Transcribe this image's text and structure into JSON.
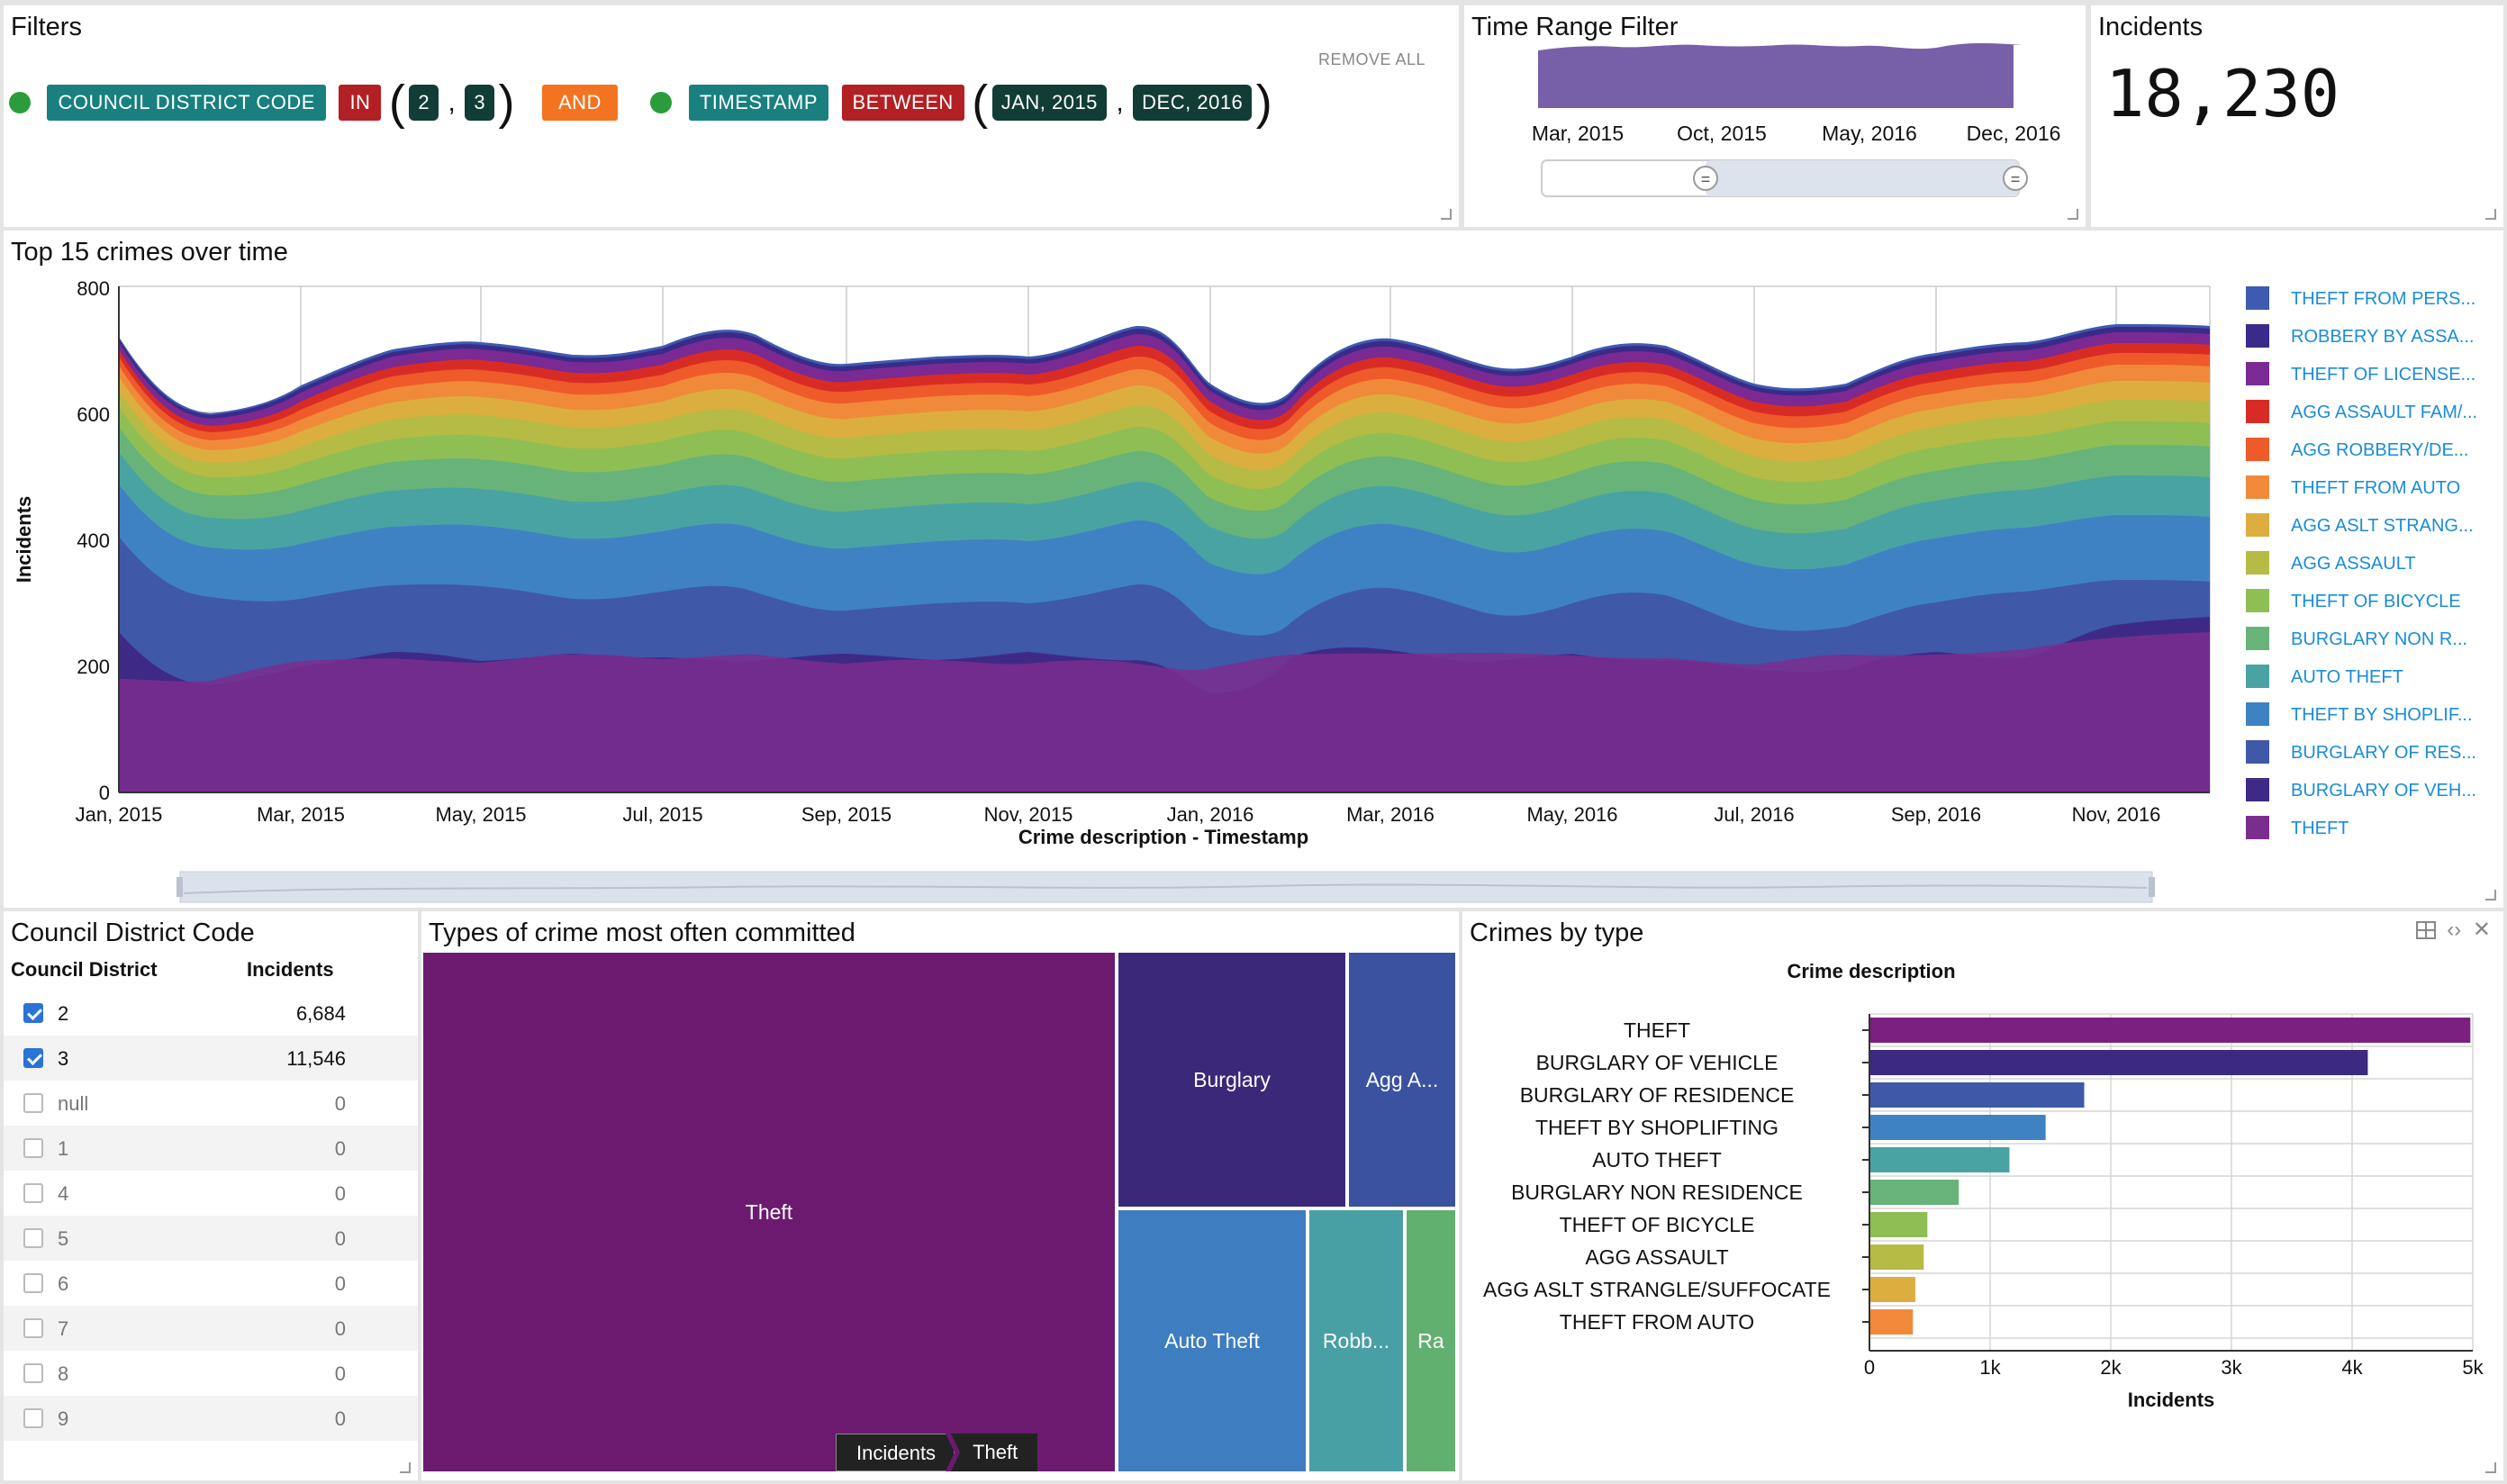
{
  "filters": {
    "title": "Filters",
    "remove_all": "REMOVE ALL",
    "f1_field": "COUNCIL DISTRICT CODE",
    "f1_op": "IN",
    "f1_v1": "2",
    "f1_v2": "3",
    "join": "AND",
    "f2_field": "TIMESTAMP",
    "f2_op": "BETWEEN",
    "f2_v1": "JAN, 2015",
    "f2_v2": "DEC, 2016",
    "active_color": "#2a9d3a"
  },
  "time_range": {
    "title": "Time Range Filter",
    "labels": [
      "Mar, 2015",
      "Oct, 2015",
      "May, 2016",
      "Dec, 2016"
    ],
    "slider_handle_glyph": "="
  },
  "incidents_kpi": {
    "title": "Incidents",
    "value": "18,230"
  },
  "top15": {
    "title": "Top 15 crimes over time",
    "ylabel": "Incidents",
    "xlabel": "Crime description - Timestamp",
    "yticks": [
      "0",
      "200",
      "400",
      "600",
      "800"
    ],
    "xticks": [
      "Jan, 2015",
      "Mar, 2015",
      "May, 2015",
      "Jul, 2015",
      "Sep, 2015",
      "Nov, 2015",
      "Jan, 2016",
      "Mar, 2016",
      "May, 2016",
      "Jul, 2016",
      "Sep, 2016",
      "Nov, 2016"
    ],
    "legend": [
      {
        "label": "THEFT FROM PERS...",
        "color": "#3d5bb0"
      },
      {
        "label": "ROBBERY BY ASSA...",
        "color": "#3a2a8a"
      },
      {
        "label": "THEFT OF LICENSE...",
        "color": "#7a2a92"
      },
      {
        "label": "AGG ASSAULT FAM/...",
        "color": "#d92b26"
      },
      {
        "label": "AGG ROBBERY/DE...",
        "color": "#ef5a2a"
      },
      {
        "label": "THEFT FROM AUTO",
        "color": "#f08a3a"
      },
      {
        "label": "AGG ASLT STRANG...",
        "color": "#dcae3f"
      },
      {
        "label": "AGG ASSAULT",
        "color": "#b5bb45"
      },
      {
        "label": "THEFT OF BICYCLE",
        "color": "#8fbe55"
      },
      {
        "label": "BURGLARY NON R...",
        "color": "#68b37a"
      },
      {
        "label": "AUTO THEFT",
        "color": "#4aa3a3"
      },
      {
        "label": "THEFT BY SHOPLIF...",
        "color": "#3f82c4"
      },
      {
        "label": "BURGLARY OF RES...",
        "color": "#3f58a8"
      },
      {
        "label": "BURGLARY OF VEH...",
        "color": "#3e2a86"
      },
      {
        "label": "THEFT",
        "color": "#7b2d8e"
      }
    ]
  },
  "district": {
    "title": "Council District Code",
    "col1": "Council District",
    "col2": "Incidents",
    "rows": [
      {
        "label": "2",
        "value": "6,684",
        "checked": true
      },
      {
        "label": "3",
        "value": "11,546",
        "checked": true
      },
      {
        "label": "null",
        "value": "0",
        "checked": false
      },
      {
        "label": "1",
        "value": "0",
        "checked": false
      },
      {
        "label": "4",
        "value": "0",
        "checked": false
      },
      {
        "label": "5",
        "value": "0",
        "checked": false
      },
      {
        "label": "6",
        "value": "0",
        "checked": false
      },
      {
        "label": "7",
        "value": "0",
        "checked": false
      },
      {
        "label": "8",
        "value": "0",
        "checked": false
      },
      {
        "label": "9",
        "value": "0",
        "checked": false
      }
    ]
  },
  "treemap": {
    "title": "Types of crime most often committed",
    "cells": [
      {
        "label": "Theft",
        "color": "#6b1a70"
      },
      {
        "label": "Burglary",
        "color": "#3b2878"
      },
      {
        "label": "Agg A...",
        "color": "#3a52a0"
      },
      {
        "label": "Auto Theft",
        "color": "#3d7dc0"
      },
      {
        "label": "Robb...",
        "color": "#48a0a5"
      },
      {
        "label": "Ra",
        "color": "#62b070"
      }
    ],
    "breadcrumb": [
      "Incidents",
      "Theft"
    ]
  },
  "crimes_by_type": {
    "title": "Crimes by type",
    "chart_data": {
      "type": "bar",
      "orientation": "horizontal",
      "title": "Crime description",
      "xlabel": "Incidents",
      "categories": [
        "THEFT",
        "BURGLARY OF VEHICLE",
        "BURGLARY OF RESIDENCE",
        "THEFT BY SHOPLIFTING",
        "AUTO THEFT",
        "BURGLARY NON RESIDENCE",
        "THEFT OF BICYCLE",
        "AGG ASSAULT",
        "AGG ASLT STRANGLE/SUFFOCATE",
        "THEFT FROM AUTO"
      ],
      "values": [
        4980,
        4130,
        1780,
        1460,
        1160,
        740,
        480,
        450,
        380,
        360
      ],
      "colors": [
        "#7b1f80",
        "#3b2a80",
        "#3f58a8",
        "#3f82c4",
        "#4aa3a3",
        "#68b37a",
        "#8fbe55",
        "#b5bb45",
        "#dcae3f",
        "#f08a3a"
      ],
      "xlim": [
        0,
        5000
      ],
      "xtick_values": [
        0,
        1000,
        2000,
        3000,
        4000,
        5000
      ],
      "xticks": [
        "0",
        "1k",
        "2k",
        "3k",
        "4k",
        "5k"
      ]
    }
  }
}
